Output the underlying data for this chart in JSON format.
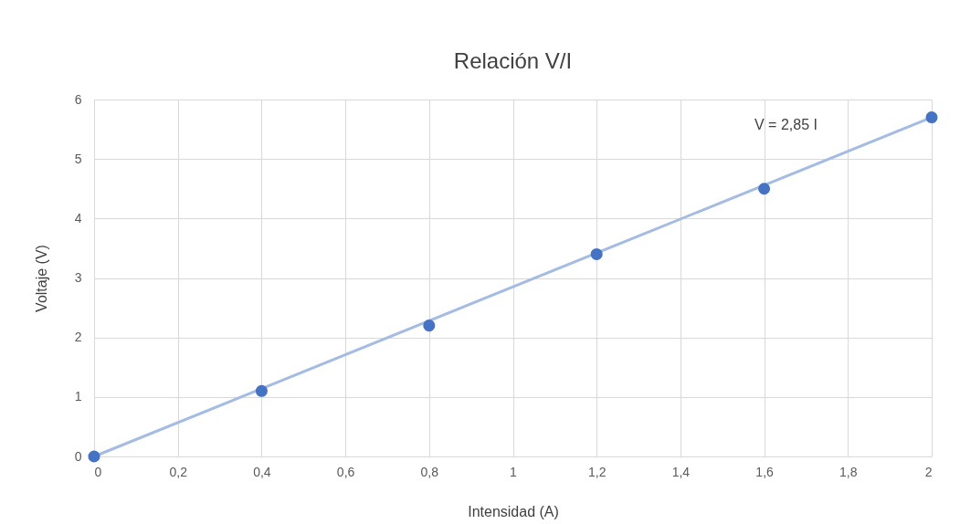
{
  "chart_data": {
    "type": "scatter",
    "title": "Relación V/I",
    "xlabel": "Intensidad (A)",
    "ylabel": "Voltaje (V)",
    "series": [
      {
        "type": "line",
        "color": "#a4bce3",
        "x": [
          0,
          2
        ],
        "values": [
          0,
          5.7
        ]
      },
      {
        "color": "#4472c4",
        "x": [
          0,
          0.4,
          0.8,
          1.2,
          1.6,
          2
        ],
        "values": [
          0,
          1.1,
          2.2,
          3.4,
          4.5,
          5.7
        ]
      }
    ],
    "xlim": [
      0,
      2
    ],
    "xticks": [
      0,
      {
        "value": 0.2,
        "label": "0,2"
      },
      {
        "value": 0.4,
        "label": "0,4"
      },
      {
        "value": 0.6,
        "label": "0,6"
      },
      {
        "value": 0.8,
        "label": "0,8"
      },
      1,
      {
        "value": 1.2,
        "label": "1,2"
      },
      {
        "value": 1.4,
        "label": "1,4"
      },
      {
        "value": 1.6,
        "label": "1,6"
      },
      {
        "value": 1.8,
        "label": "1,8"
      },
      2
    ],
    "ylim": [
      0,
      6
    ],
    "yticks": [
      0,
      1,
      2,
      3,
      4,
      5,
      6
    ],
    "grid": true,
    "annotations": [
      "V = 2,85 I"
    ]
  }
}
